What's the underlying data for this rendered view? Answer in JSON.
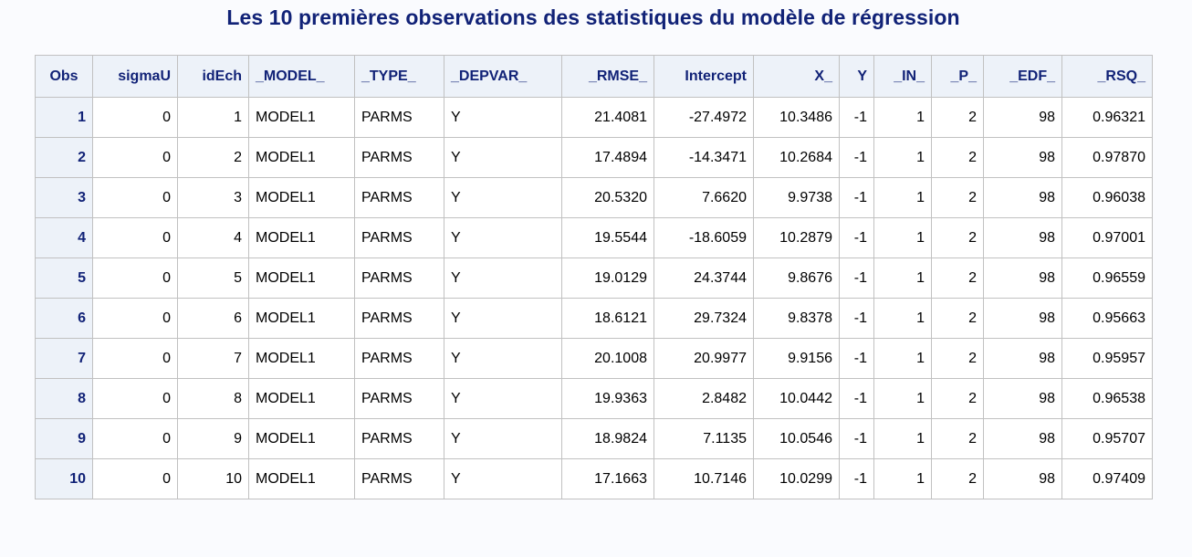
{
  "title": "Les 10 premières observations des statistiques du modèle de régression",
  "table": {
    "headers": [
      "Obs",
      "sigmaU",
      "idEch",
      "_MODEL_",
      "_TYPE_",
      "_DEPVAR_",
      "_RMSE_",
      "Intercept",
      "X_",
      "Y",
      "_IN_",
      "_P_",
      "_EDF_",
      "_RSQ_"
    ],
    "rows": [
      [
        "1",
        "0",
        "1",
        "MODEL1",
        "PARMS",
        "Y",
        "21.4081",
        "-27.4972",
        "10.3486",
        "-1",
        "1",
        "2",
        "98",
        "0.96321"
      ],
      [
        "2",
        "0",
        "2",
        "MODEL1",
        "PARMS",
        "Y",
        "17.4894",
        "-14.3471",
        "10.2684",
        "-1",
        "1",
        "2",
        "98",
        "0.97870"
      ],
      [
        "3",
        "0",
        "3",
        "MODEL1",
        "PARMS",
        "Y",
        "20.5320",
        "7.6620",
        "9.9738",
        "-1",
        "1",
        "2",
        "98",
        "0.96038"
      ],
      [
        "4",
        "0",
        "4",
        "MODEL1",
        "PARMS",
        "Y",
        "19.5544",
        "-18.6059",
        "10.2879",
        "-1",
        "1",
        "2",
        "98",
        "0.97001"
      ],
      [
        "5",
        "0",
        "5",
        "MODEL1",
        "PARMS",
        "Y",
        "19.0129",
        "24.3744",
        "9.8676",
        "-1",
        "1",
        "2",
        "98",
        "0.96559"
      ],
      [
        "6",
        "0",
        "6",
        "MODEL1",
        "PARMS",
        "Y",
        "18.6121",
        "29.7324",
        "9.8378",
        "-1",
        "1",
        "2",
        "98",
        "0.95663"
      ],
      [
        "7",
        "0",
        "7",
        "MODEL1",
        "PARMS",
        "Y",
        "20.1008",
        "20.9977",
        "9.9156",
        "-1",
        "1",
        "2",
        "98",
        "0.95957"
      ],
      [
        "8",
        "0",
        "8",
        "MODEL1",
        "PARMS",
        "Y",
        "19.9363",
        "2.8482",
        "10.0442",
        "-1",
        "1",
        "2",
        "98",
        "0.96538"
      ],
      [
        "9",
        "0",
        "9",
        "MODEL1",
        "PARMS",
        "Y",
        "18.9824",
        "7.1135",
        "10.0546",
        "-1",
        "1",
        "2",
        "98",
        "0.95707"
      ],
      [
        "10",
        "0",
        "10",
        "MODEL1",
        "PARMS",
        "Y",
        "17.1663",
        "10.7146",
        "10.0299",
        "-1",
        "1",
        "2",
        "98",
        "0.97409"
      ]
    ]
  }
}
